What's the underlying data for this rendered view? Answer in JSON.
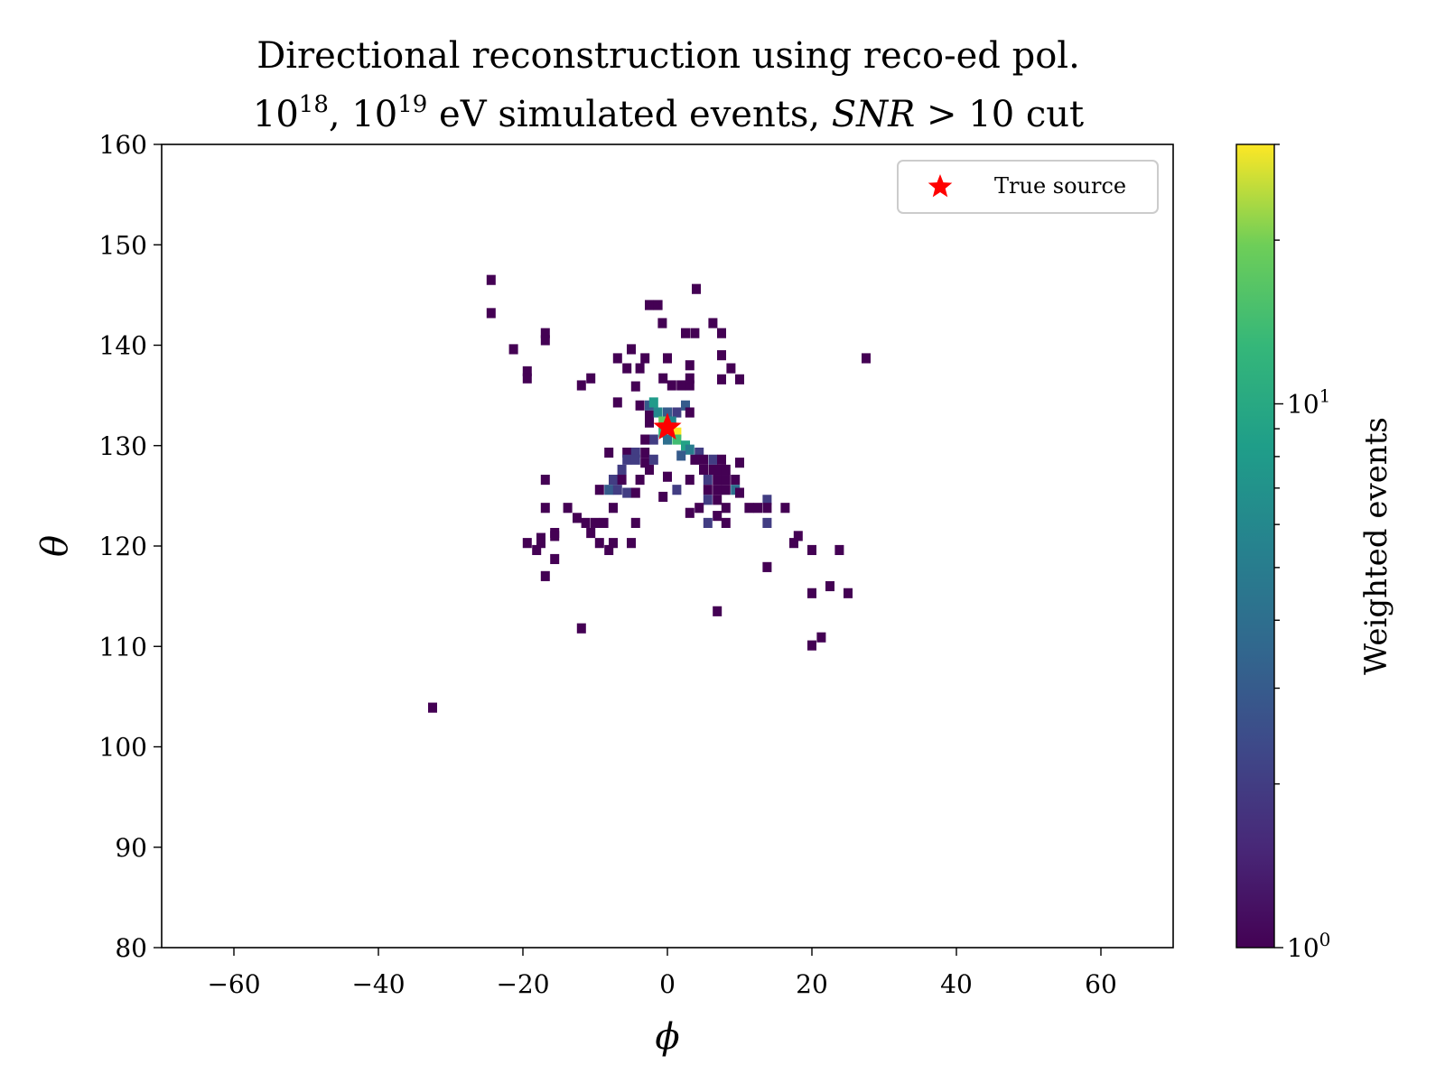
{
  "chart_data": {
    "type": "heatmap",
    "title": "Directional reconstruction using reco-ed pol.",
    "subtitle": "10^18, 10^19 eV simulated events, SNR > 10 cut",
    "subtitle_parts": {
      "base1": "10",
      "exp1": "18",
      "sep": ", ",
      "base2": "10",
      "exp2": "19",
      "mid": " eV simulated events, ",
      "snr": "SNR",
      "tail": " > 10 cut"
    },
    "xlabel": "ϕ",
    "ylabel": "θ",
    "xlim": [
      -70,
      70
    ],
    "ylim": [
      80,
      160
    ],
    "xticks": [
      -60,
      -40,
      -20,
      0,
      20,
      40,
      60
    ],
    "xtick_labels": [
      "−60",
      "−40",
      "−20",
      "0",
      "20",
      "40",
      "60"
    ],
    "yticks": [
      80,
      90,
      100,
      110,
      120,
      130,
      140,
      150,
      160
    ],
    "ytick_labels": [
      "80",
      "90",
      "100",
      "110",
      "120",
      "130",
      "140",
      "150",
      "160"
    ],
    "bin_width_x": 1.25,
    "bin_height_y": 1.0,
    "colorscale": "viridis",
    "color_scale_type": "log",
    "colorbar": {
      "label": "Weighted events",
      "vmin": 1,
      "vmax": 30,
      "major_ticks": [
        {
          "value": 1,
          "base": "10",
          "exp": "0"
        },
        {
          "value": 10,
          "base": "10",
          "exp": "1"
        }
      ],
      "minor_ticks": [
        2,
        3,
        4,
        5,
        6,
        7,
        8,
        9,
        20,
        30
      ]
    },
    "legend": {
      "position": "top-right",
      "entries": [
        {
          "label": "True source",
          "marker": "star",
          "color": "#ff0000"
        }
      ]
    },
    "true_source": {
      "x": 0.0,
      "y": 131.8
    },
    "bins": [
      {
        "x": -24.4,
        "y": 146.5,
        "v": 1
      },
      {
        "x": -24.4,
        "y": 143.2,
        "v": 1
      },
      {
        "x": 4.0,
        "y": 145.6,
        "v": 1
      },
      {
        "x": -2.5,
        "y": 144.0,
        "v": 1
      },
      {
        "x": -1.3,
        "y": 144.0,
        "v": 1
      },
      {
        "x": -0.7,
        "y": 142.2,
        "v": 1
      },
      {
        "x": -16.9,
        "y": 141.2,
        "v": 1
      },
      {
        "x": -16.9,
        "y": 140.5,
        "v": 1
      },
      {
        "x": 2.5,
        "y": 141.2,
        "v": 1
      },
      {
        "x": 3.8,
        "y": 141.2,
        "v": 1
      },
      {
        "x": 6.3,
        "y": 142.2,
        "v": 1
      },
      {
        "x": 7.5,
        "y": 141.2,
        "v": 1
      },
      {
        "x": -21.3,
        "y": 139.6,
        "v": 1
      },
      {
        "x": -19.4,
        "y": 137.4,
        "v": 1
      },
      {
        "x": -19.4,
        "y": 136.7,
        "v": 1
      },
      {
        "x": -5.0,
        "y": 139.6,
        "v": 1
      },
      {
        "x": -6.9,
        "y": 138.7,
        "v": 1
      },
      {
        "x": -5.6,
        "y": 137.7,
        "v": 1
      },
      {
        "x": -3.8,
        "y": 137.7,
        "v": 1
      },
      {
        "x": -3.1,
        "y": 138.7,
        "v": 1
      },
      {
        "x": 0.0,
        "y": 138.7,
        "v": 1
      },
      {
        "x": 3.1,
        "y": 138.0,
        "v": 1
      },
      {
        "x": 7.5,
        "y": 139.0,
        "v": 1
      },
      {
        "x": 8.8,
        "y": 137.7,
        "v": 1
      },
      {
        "x": 27.5,
        "y": 138.7,
        "v": 1
      },
      {
        "x": -11.9,
        "y": 136.0,
        "v": 1
      },
      {
        "x": -10.6,
        "y": 136.7,
        "v": 1
      },
      {
        "x": -4.4,
        "y": 135.9,
        "v": 1
      },
      {
        "x": -0.6,
        "y": 136.7,
        "v": 1
      },
      {
        "x": 0.6,
        "y": 136.0,
        "v": 1
      },
      {
        "x": 1.9,
        "y": 136.0,
        "v": 1
      },
      {
        "x": 3.1,
        "y": 136.0,
        "v": 1
      },
      {
        "x": 3.1,
        "y": 136.7,
        "v": 1
      },
      {
        "x": 7.5,
        "y": 136.6,
        "v": 1
      },
      {
        "x": 10.0,
        "y": 136.6,
        "v": 1
      },
      {
        "x": -6.9,
        "y": 134.3,
        "v": 1
      },
      {
        "x": -3.8,
        "y": 134.0,
        "v": 1
      },
      {
        "x": -2.5,
        "y": 134.0,
        "v": 3
      },
      {
        "x": -2.5,
        "y": 133.0,
        "v": 1
      },
      {
        "x": -1.9,
        "y": 134.3,
        "v": 8
      },
      {
        "x": -1.3,
        "y": 133.3,
        "v": 6
      },
      {
        "x": 0.0,
        "y": 133.3,
        "v": 3
      },
      {
        "x": 1.3,
        "y": 133.3,
        "v": 2
      },
      {
        "x": 2.5,
        "y": 134.0,
        "v": 3
      },
      {
        "x": 3.1,
        "y": 133.3,
        "v": 1
      },
      {
        "x": -2.5,
        "y": 132.3,
        "v": 1
      },
      {
        "x": -0.6,
        "y": 132.4,
        "v": 18
      },
      {
        "x": 0.6,
        "y": 132.4,
        "v": 6
      },
      {
        "x": 1.3,
        "y": 131.3,
        "v": 30
      },
      {
        "x": -0.6,
        "y": 131.3,
        "v": 12
      },
      {
        "x": -1.9,
        "y": 130.6,
        "v": 2
      },
      {
        "x": 0.0,
        "y": 130.6,
        "v": 4
      },
      {
        "x": 1.3,
        "y": 130.6,
        "v": 14
      },
      {
        "x": 2.5,
        "y": 130.0,
        "v": 9
      },
      {
        "x": -3.1,
        "y": 130.6,
        "v": 1
      },
      {
        "x": 3.1,
        "y": 129.6,
        "v": 5
      },
      {
        "x": 4.4,
        "y": 129.3,
        "v": 2
      },
      {
        "x": 1.9,
        "y": 129.0,
        "v": 3
      },
      {
        "x": -8.1,
        "y": 129.3,
        "v": 1
      },
      {
        "x": -5.6,
        "y": 129.3,
        "v": 1
      },
      {
        "x": -4.4,
        "y": 129.3,
        "v": 2
      },
      {
        "x": -3.1,
        "y": 129.3,
        "v": 1
      },
      {
        "x": -5.6,
        "y": 128.6,
        "v": 2
      },
      {
        "x": -4.4,
        "y": 128.6,
        "v": 2
      },
      {
        "x": -3.1,
        "y": 128.3,
        "v": 1
      },
      {
        "x": -1.9,
        "y": 128.6,
        "v": 2
      },
      {
        "x": 3.8,
        "y": 128.6,
        "v": 1
      },
      {
        "x": 5.0,
        "y": 128.6,
        "v": 1
      },
      {
        "x": 6.3,
        "y": 128.6,
        "v": 2
      },
      {
        "x": 7.5,
        "y": 128.6,
        "v": 1
      },
      {
        "x": 10.0,
        "y": 128.3,
        "v": 1
      },
      {
        "x": -6.3,
        "y": 127.6,
        "v": 2
      },
      {
        "x": -2.5,
        "y": 127.6,
        "v": 1
      },
      {
        "x": 5.0,
        "y": 127.6,
        "v": 1
      },
      {
        "x": 6.3,
        "y": 127.6,
        "v": 1
      },
      {
        "x": 7.5,
        "y": 127.6,
        "v": 1
      },
      {
        "x": 8.1,
        "y": 127.6,
        "v": 1
      },
      {
        "x": -7.5,
        "y": 126.6,
        "v": 2
      },
      {
        "x": -6.3,
        "y": 126.6,
        "v": 1
      },
      {
        "x": -3.8,
        "y": 126.6,
        "v": 1
      },
      {
        "x": 0.0,
        "y": 126.9,
        "v": 1
      },
      {
        "x": 3.1,
        "y": 126.6,
        "v": 1
      },
      {
        "x": 5.6,
        "y": 126.6,
        "v": 2
      },
      {
        "x": 6.9,
        "y": 126.6,
        "v": 1
      },
      {
        "x": 8.1,
        "y": 126.6,
        "v": 1
      },
      {
        "x": 9.4,
        "y": 126.6,
        "v": 1
      },
      {
        "x": -16.9,
        "y": 126.6,
        "v": 1
      },
      {
        "x": -9.4,
        "y": 125.6,
        "v": 1
      },
      {
        "x": -8.1,
        "y": 125.6,
        "v": 3
      },
      {
        "x": -6.9,
        "y": 125.6,
        "v": 2
      },
      {
        "x": -5.6,
        "y": 125.3,
        "v": 2
      },
      {
        "x": -4.4,
        "y": 125.3,
        "v": 1
      },
      {
        "x": -0.6,
        "y": 124.9,
        "v": 1
      },
      {
        "x": 1.3,
        "y": 125.6,
        "v": 2
      },
      {
        "x": 5.6,
        "y": 125.6,
        "v": 1
      },
      {
        "x": 6.9,
        "y": 125.6,
        "v": 1
      },
      {
        "x": 8.1,
        "y": 125.6,
        "v": 1
      },
      {
        "x": 9.4,
        "y": 125.6,
        "v": 4
      },
      {
        "x": 10.0,
        "y": 125.3,
        "v": 1
      },
      {
        "x": 5.6,
        "y": 124.6,
        "v": 2
      },
      {
        "x": 6.9,
        "y": 124.6,
        "v": 1
      },
      {
        "x": 13.8,
        "y": 124.6,
        "v": 2
      },
      {
        "x": -16.9,
        "y": 123.8,
        "v": 1
      },
      {
        "x": -13.8,
        "y": 123.8,
        "v": 1
      },
      {
        "x": -12.5,
        "y": 122.8,
        "v": 1
      },
      {
        "x": -7.5,
        "y": 123.8,
        "v": 1
      },
      {
        "x": 3.1,
        "y": 123.3,
        "v": 1
      },
      {
        "x": 4.4,
        "y": 123.8,
        "v": 1
      },
      {
        "x": 6.9,
        "y": 123.0,
        "v": 1
      },
      {
        "x": 8.1,
        "y": 123.8,
        "v": 1
      },
      {
        "x": 11.3,
        "y": 123.8,
        "v": 1
      },
      {
        "x": 12.5,
        "y": 123.8,
        "v": 1
      },
      {
        "x": 13.8,
        "y": 123.8,
        "v": 1
      },
      {
        "x": 16.3,
        "y": 123.8,
        "v": 1
      },
      {
        "x": -11.3,
        "y": 122.3,
        "v": 1
      },
      {
        "x": -10.0,
        "y": 122.3,
        "v": 1
      },
      {
        "x": -8.8,
        "y": 122.3,
        "v": 1
      },
      {
        "x": -4.4,
        "y": 122.3,
        "v": 1
      },
      {
        "x": 5.6,
        "y": 122.3,
        "v": 2
      },
      {
        "x": 8.1,
        "y": 122.3,
        "v": 1
      },
      {
        "x": 13.8,
        "y": 122.3,
        "v": 2
      },
      {
        "x": -15.6,
        "y": 121.3,
        "v": 1
      },
      {
        "x": -10.6,
        "y": 121.3,
        "v": 1
      },
      {
        "x": -17.5,
        "y": 120.8,
        "v": 1
      },
      {
        "x": -15.6,
        "y": 121.0,
        "v": 1
      },
      {
        "x": -19.4,
        "y": 120.3,
        "v": 1
      },
      {
        "x": -17.5,
        "y": 120.3,
        "v": 1
      },
      {
        "x": -9.4,
        "y": 120.3,
        "v": 1
      },
      {
        "x": -7.5,
        "y": 120.3,
        "v": 1
      },
      {
        "x": -5.0,
        "y": 120.3,
        "v": 1
      },
      {
        "x": 18.1,
        "y": 121.0,
        "v": 1
      },
      {
        "x": 17.5,
        "y": 120.3,
        "v": 1
      },
      {
        "x": -18.1,
        "y": 119.6,
        "v": 1
      },
      {
        "x": -8.1,
        "y": 119.6,
        "v": 1
      },
      {
        "x": 20.0,
        "y": 119.6,
        "v": 1
      },
      {
        "x": 23.8,
        "y": 119.6,
        "v": 1
      },
      {
        "x": -15.6,
        "y": 118.7,
        "v": 1
      },
      {
        "x": 13.8,
        "y": 117.9,
        "v": 1
      },
      {
        "x": -16.9,
        "y": 117.0,
        "v": 1
      },
      {
        "x": 22.5,
        "y": 116.0,
        "v": 1
      },
      {
        "x": 20.0,
        "y": 115.3,
        "v": 1
      },
      {
        "x": 25.0,
        "y": 115.3,
        "v": 1
      },
      {
        "x": 6.9,
        "y": 113.5,
        "v": 1
      },
      {
        "x": -11.9,
        "y": 111.8,
        "v": 1
      },
      {
        "x": 21.3,
        "y": 110.9,
        "v": 1
      },
      {
        "x": 20.0,
        "y": 110.1,
        "v": 1
      },
      {
        "x": -32.5,
        "y": 103.9,
        "v": 1
      }
    ]
  }
}
